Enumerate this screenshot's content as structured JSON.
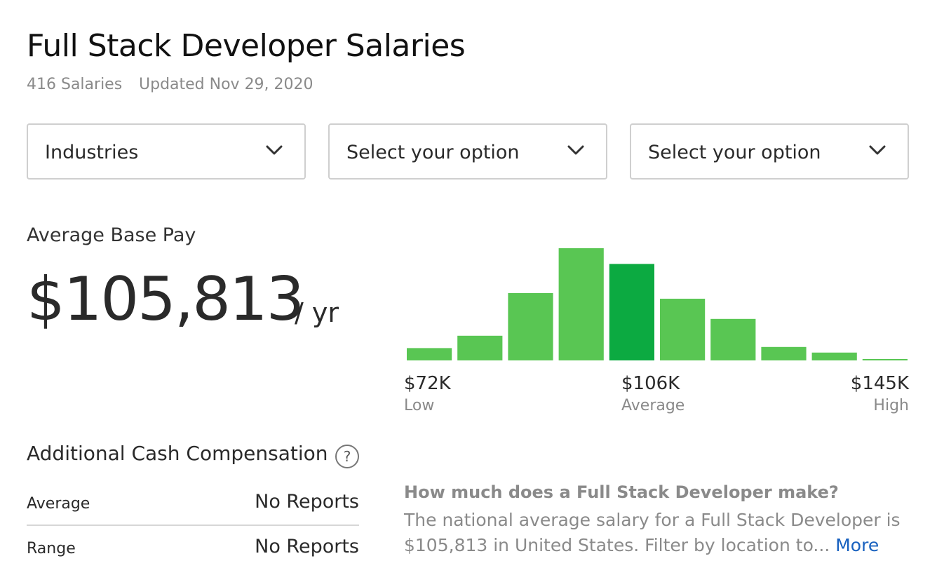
{
  "page": {
    "title": "Full Stack Developer Salaries",
    "salary_count": "416 Salaries",
    "updated": "Updated Nov 29, 2020"
  },
  "filters": [
    {
      "label": "Industries",
      "icon": "chevron-down-icon"
    },
    {
      "label": "Select your option",
      "icon": "chevron-down-icon"
    },
    {
      "label": "Select your option",
      "icon": "chevron-down-icon"
    }
  ],
  "base_pay": {
    "label": "Average Base Pay",
    "value": "$105,813",
    "unit": "/ yr"
  },
  "range": {
    "low_value": "$72K",
    "low_label": "Low",
    "avg_value": "$106K",
    "avg_label": "Average",
    "high_value": "$145K",
    "high_label": "High"
  },
  "colors": {
    "bar": "#59c653",
    "bar_highlight": "#0caa41"
  },
  "chart_data": {
    "type": "bar",
    "categories": [
      "1",
      "2",
      "3",
      "4",
      "5",
      "6",
      "7",
      "8",
      "9",
      "10"
    ],
    "values": [
      11,
      22,
      60,
      100,
      86,
      55,
      37,
      12,
      7,
      1
    ],
    "highlight_index": 4,
    "ylim": [
      0,
      100
    ],
    "xlabel": "",
    "ylabel": "",
    "title": ""
  },
  "additional_cash": {
    "title": "Additional Cash Compensation",
    "help_icon": "question-circle-icon",
    "help_glyph": "?",
    "rows": [
      {
        "key": "Average",
        "value": "No Reports"
      },
      {
        "key": "Range",
        "value": "No Reports"
      }
    ]
  },
  "faq": {
    "question": "How much does a Full Stack Developer make?",
    "answer": "The national average salary for a Full Stack Developer is $105,813 in United States. Filter by location to...",
    "more_label": "More"
  }
}
